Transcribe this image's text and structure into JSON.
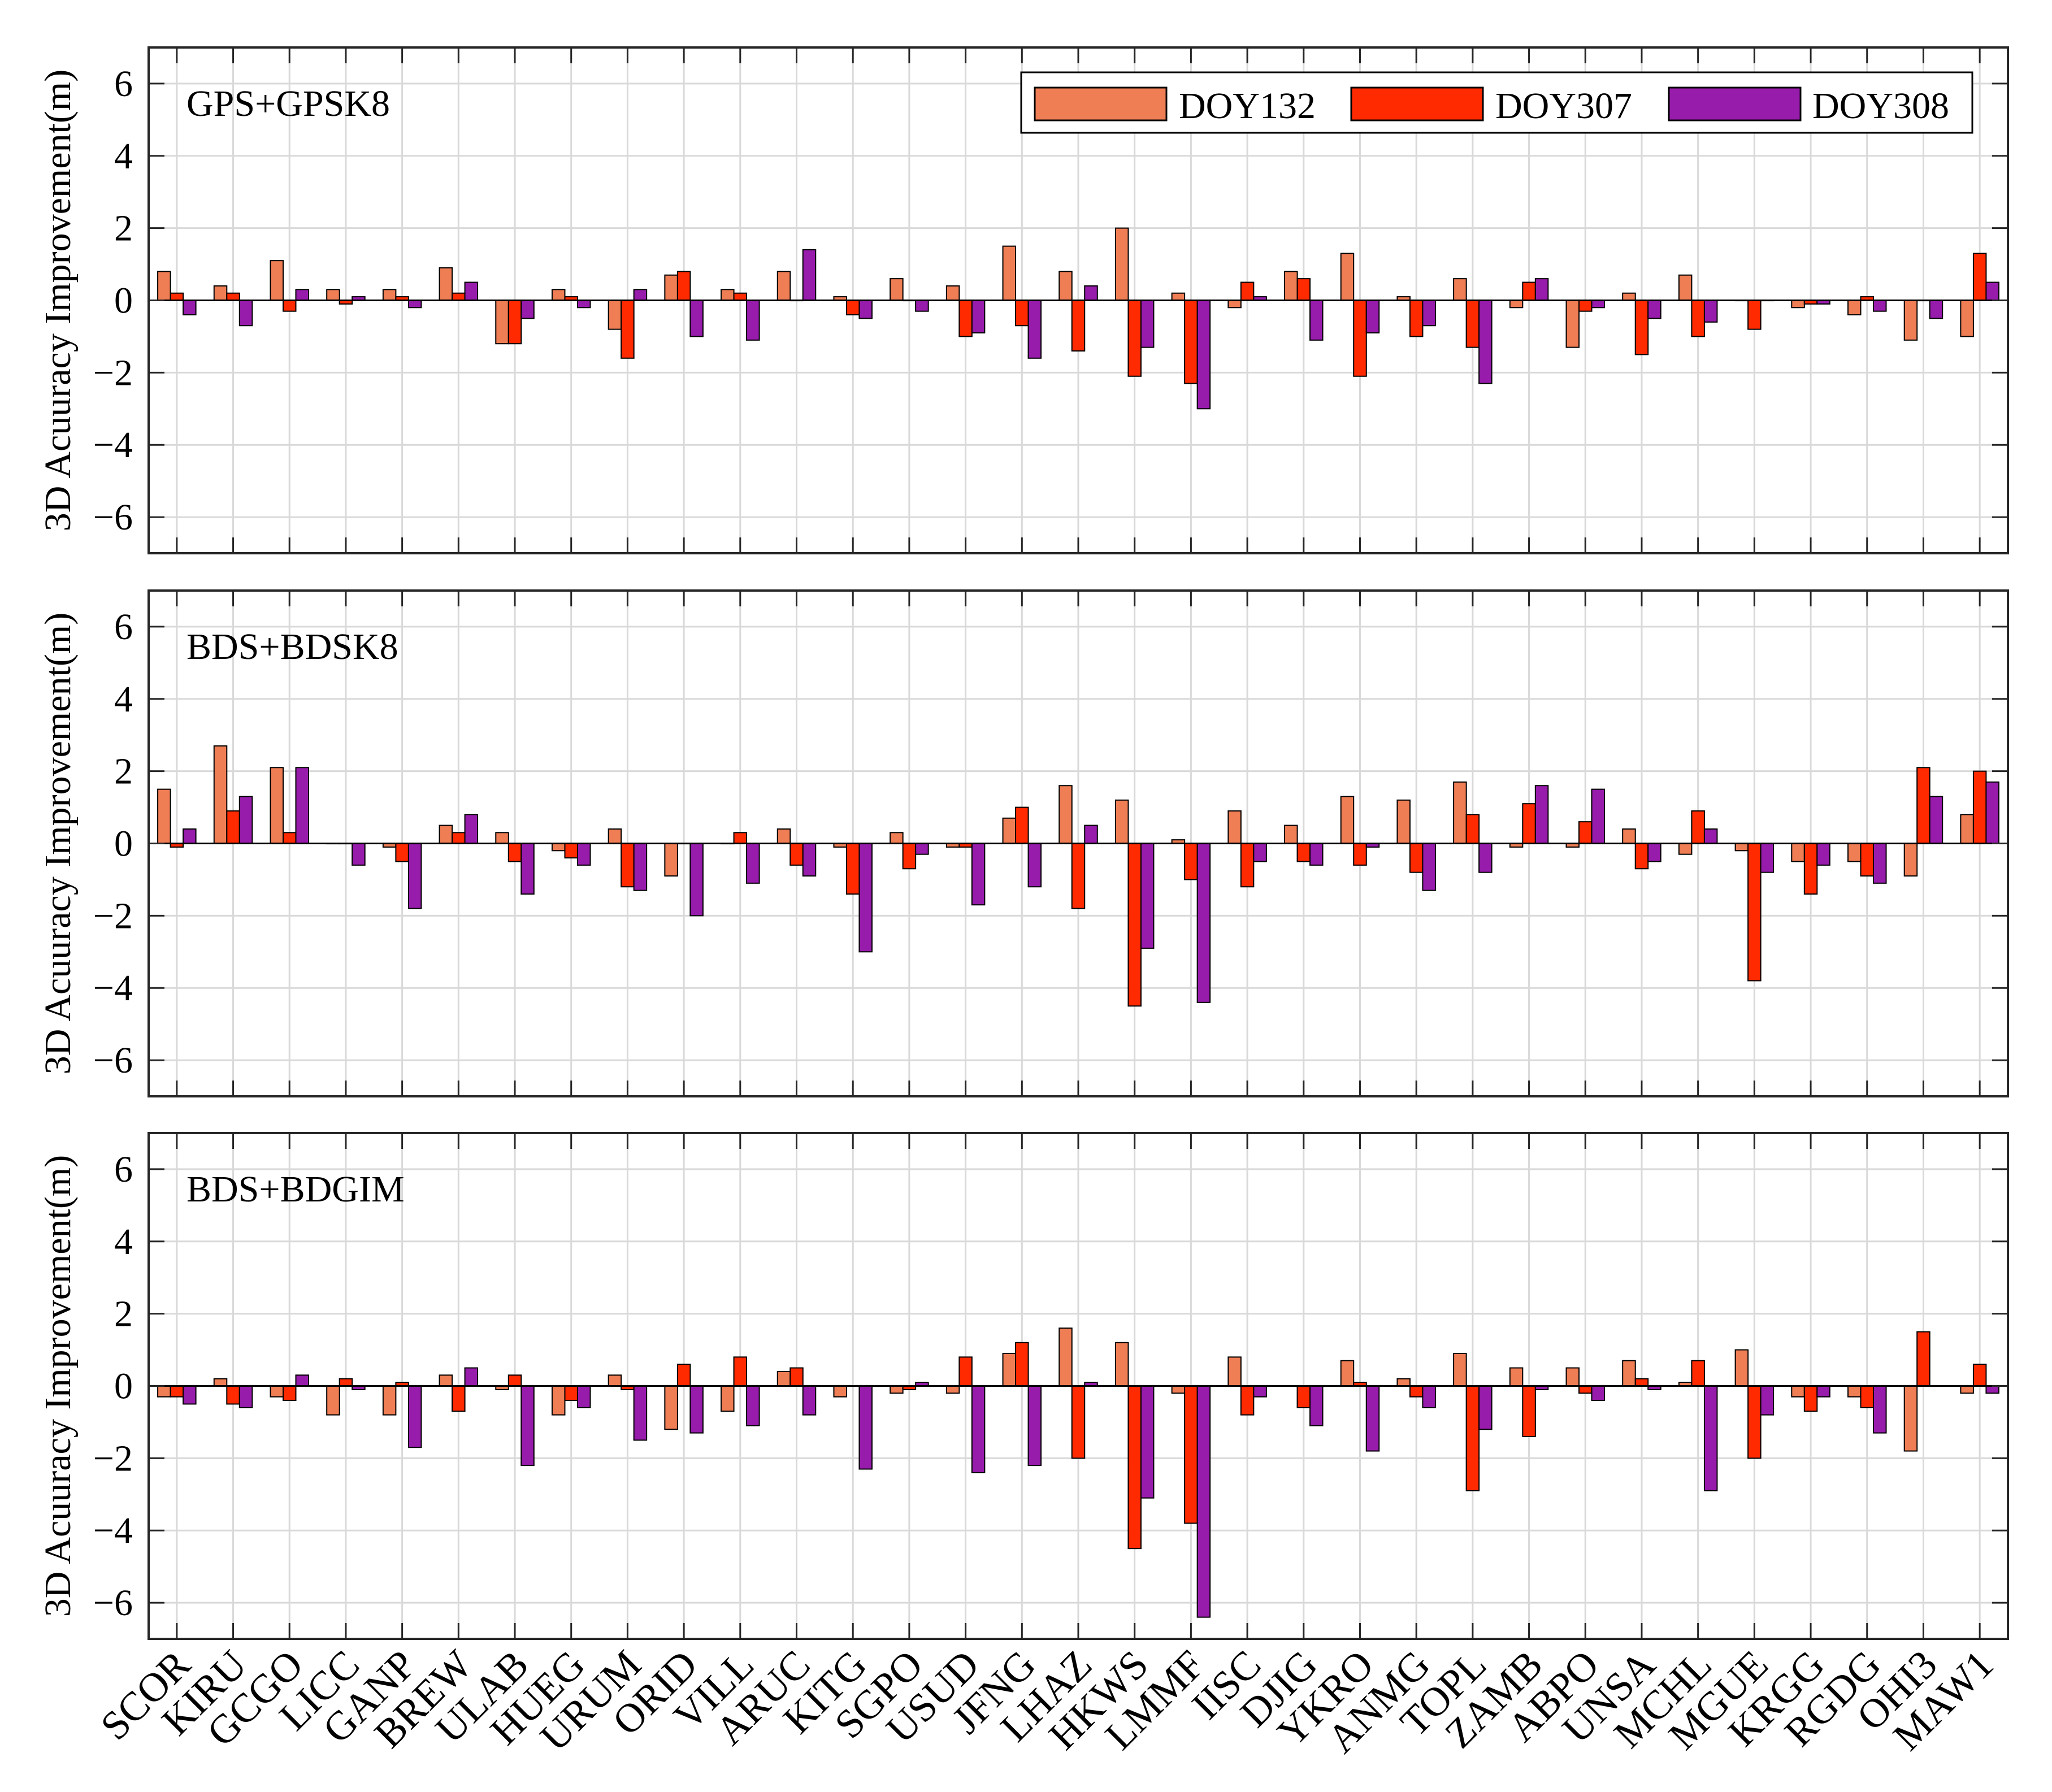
{
  "colors": {
    "doy132": "#f07e55",
    "doy307": "#ff2a00",
    "doy308": "#981cac",
    "bar_edge": "#000000",
    "grid": "#d9d9d9",
    "axis": "#262626"
  },
  "chart_data": {
    "type": "bar",
    "ylabel": "3D Acuuracy Improvement(m)",
    "ylim": [
      -7,
      7
    ],
    "yticks": [
      -6,
      -4,
      -2,
      0,
      2,
      4,
      6
    ],
    "ytick_labels": [
      "−6",
      "−4",
      "−2",
      "0",
      "2",
      "4",
      "6"
    ],
    "grid": "on",
    "legend_location": "top-right",
    "legend": [
      "DOY132",
      "DOY307",
      "DOY308"
    ],
    "categories": [
      "SCOR",
      "KIRU",
      "GCGO",
      "LICC",
      "GANP",
      "BREW",
      "ULAB",
      "HUEG",
      "URUM",
      "ORID",
      "VILL",
      "ARUC",
      "KITG",
      "SGPO",
      "USUD",
      "JFNG",
      "LHAZ",
      "HKWS",
      "LMMF",
      "IISC",
      "DJIG",
      "YKRO",
      "ANMG",
      "TOPL",
      "ZAMB",
      "ABPO",
      "UNSA",
      "MCHL",
      "MGUE",
      "KRGG",
      "RGDG",
      "OHI3",
      "MAW1"
    ],
    "panels": [
      {
        "label": "GPS+GPSK8",
        "series": [
          {
            "name": "DOY132",
            "values": [
              0.8,
              0.4,
              1.1,
              0.3,
              0.3,
              0.9,
              -1.2,
              0.3,
              -0.8,
              0.7,
              0.3,
              0.8,
              0.1,
              0.6,
              0.4,
              1.5,
              0.8,
              2.0,
              0.2,
              -0.2,
              0.8,
              1.3,
              0.1,
              0.6,
              -0.2,
              -1.3,
              0.2,
              0.7,
              0.0,
              -0.2,
              -0.4,
              -1.1,
              -1.0
            ]
          },
          {
            "name": "DOY307",
            "values": [
              0.2,
              0.2,
              -0.3,
              -0.1,
              0.1,
              0.2,
              -1.2,
              0.1,
              -1.6,
              0.8,
              0.2,
              0.0,
              -0.4,
              0.0,
              -1.0,
              -0.7,
              -1.4,
              -2.1,
              -2.3,
              0.5,
              0.6,
              -2.1,
              -1.0,
              -1.3,
              0.5,
              -0.3,
              -1.5,
              -1.0,
              -0.8,
              -0.1,
              0.1,
              0.0,
              1.3
            ]
          },
          {
            "name": "DOY308",
            "values": [
              -0.4,
              -0.7,
              0.3,
              0.1,
              -0.2,
              0.5,
              -0.5,
              -0.2,
              0.3,
              -1.0,
              -1.1,
              1.4,
              -0.5,
              -0.3,
              -0.9,
              -1.6,
              0.4,
              -1.3,
              -3.0,
              0.1,
              -1.1,
              -0.9,
              -0.7,
              -2.3,
              0.6,
              -0.2,
              -0.5,
              -0.6,
              0.0,
              -0.1,
              -0.3,
              -0.5,
              0.5
            ]
          }
        ]
      },
      {
        "label": "BDS+BDSK8",
        "series": [
          {
            "name": "DOY132",
            "values": [
              1.5,
              2.7,
              2.1,
              0.0,
              -0.1,
              0.5,
              0.3,
              -0.2,
              0.4,
              -0.9,
              0.0,
              0.4,
              -0.1,
              0.3,
              -0.1,
              0.7,
              1.6,
              1.2,
              0.1,
              0.9,
              0.5,
              1.3,
              1.2,
              1.7,
              -0.1,
              -0.1,
              0.4,
              -0.3,
              -0.2,
              -0.5,
              -0.5,
              -0.9,
              0.8
            ]
          },
          {
            "name": "DOY307",
            "values": [
              -0.1,
              0.9,
              0.3,
              0.0,
              -0.5,
              0.3,
              -0.5,
              -0.4,
              -1.2,
              0.0,
              0.3,
              -0.6,
              -1.4,
              -0.7,
              -0.1,
              1.0,
              -1.8,
              -4.5,
              -1.0,
              -1.2,
              -0.5,
              -0.6,
              -0.8,
              0.8,
              1.1,
              0.6,
              -0.7,
              0.9,
              -3.8,
              -1.4,
              -0.9,
              2.1,
              2.0
            ]
          },
          {
            "name": "DOY308",
            "values": [
              0.4,
              1.3,
              2.1,
              -0.6,
              -1.8,
              0.8,
              -1.4,
              -0.6,
              -1.3,
              -2.0,
              -1.1,
              -0.9,
              -3.0,
              -0.3,
              -1.7,
              -1.2,
              0.5,
              -2.9,
              -4.4,
              -0.5,
              -0.6,
              -0.1,
              -1.3,
              -0.8,
              1.6,
              1.5,
              -0.5,
              0.4,
              -0.8,
              -0.6,
              -1.1,
              1.3,
              1.7
            ]
          }
        ]
      },
      {
        "label": "BDS+BDGIM",
        "series": [
          {
            "name": "DOY132",
            "values": [
              -0.3,
              0.2,
              -0.3,
              -0.8,
              -0.8,
              0.3,
              -0.1,
              -0.8,
              0.3,
              -1.2,
              -0.7,
              0.4,
              -0.3,
              -0.2,
              -0.2,
              0.9,
              1.6,
              1.2,
              -0.2,
              0.8,
              0.0,
              0.7,
              0.2,
              0.9,
              0.5,
              0.5,
              0.7,
              0.1,
              1.0,
              -0.3,
              -0.3,
              -1.8,
              -0.2
            ]
          },
          {
            "name": "DOY307",
            "values": [
              -0.3,
              -0.5,
              -0.4,
              0.2,
              0.1,
              -0.7,
              0.3,
              -0.4,
              -0.1,
              0.6,
              0.8,
              0.5,
              0.0,
              -0.1,
              0.8,
              1.2,
              -2.0,
              -4.5,
              -3.8,
              -0.8,
              -0.6,
              0.1,
              -0.3,
              -2.9,
              -1.4,
              -0.2,
              0.2,
              0.7,
              -2.0,
              -0.7,
              -0.6,
              1.5,
              0.6
            ]
          },
          {
            "name": "DOY308",
            "values": [
              -0.5,
              -0.6,
              0.3,
              -0.1,
              -1.7,
              0.5,
              -2.2,
              -0.6,
              -1.5,
              -1.3,
              -1.1,
              -0.8,
              -2.3,
              0.1,
              -2.4,
              -2.2,
              0.1,
              -3.1,
              -6.4,
              -0.3,
              -1.1,
              -1.8,
              -0.6,
              -1.2,
              -0.1,
              -0.4,
              -0.1,
              -2.9,
              -0.8,
              -0.3,
              -1.3,
              0.0,
              -0.2
            ]
          }
        ]
      }
    ]
  }
}
